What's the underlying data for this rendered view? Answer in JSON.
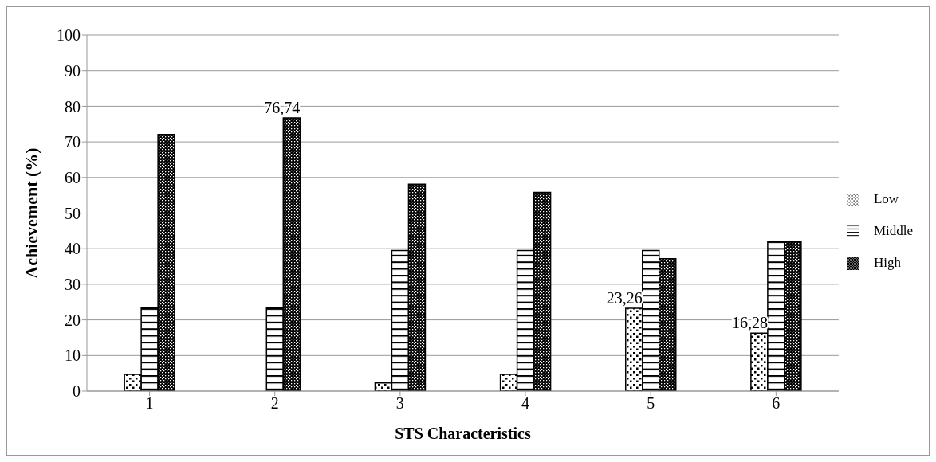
{
  "chart_data": {
    "type": "bar",
    "xlabel": "STS Characteristics",
    "ylabel": "Achievement (%)",
    "categories": [
      "1",
      "2",
      "3",
      "4",
      "5",
      "6"
    ],
    "series": [
      {
        "name": "Low",
        "color": "#000000",
        "values": [
          4.7,
          0,
          2.3,
          4.7,
          23.26,
          16.28
        ],
        "value_labels": [
          null,
          null,
          null,
          null,
          "23,26",
          "16,28"
        ]
      },
      {
        "name": "Middle",
        "color": "#000000",
        "values": [
          23.3,
          23.3,
          39.5,
          39.5,
          39.5,
          41.9
        ]
      },
      {
        "name": "High",
        "color": "#000000",
        "values": [
          72.1,
          76.74,
          58.1,
          55.8,
          37.2,
          41.9
        ],
        "value_labels": [
          null,
          "76,74",
          null,
          null,
          null,
          null
        ]
      }
    ],
    "ylim": [
      0,
      100
    ],
    "yticks": [
      0,
      10,
      20,
      30,
      40,
      50,
      60,
      70,
      80,
      90,
      100
    ],
    "grid": "y",
    "legend": "right"
  }
}
